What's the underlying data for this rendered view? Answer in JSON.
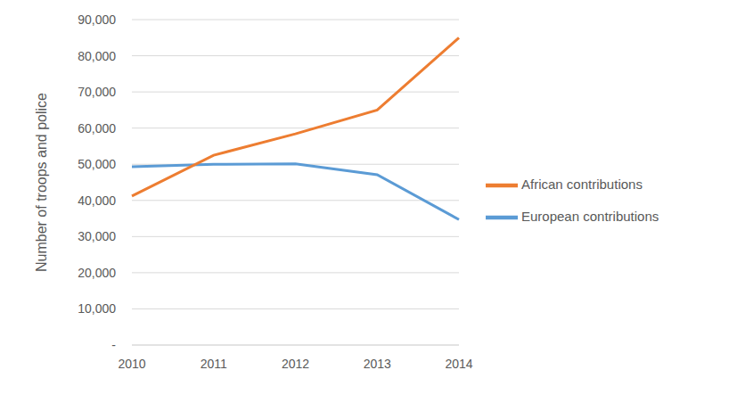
{
  "chart_data": {
    "type": "line",
    "y_label": "Number of troops and police",
    "categories": [
      "2010",
      "2011",
      "2012",
      "2013",
      "2014"
    ],
    "series": [
      {
        "name": "European contributions",
        "color": "#5b9bd5",
        "values": [
          49300,
          50000,
          50100,
          47100,
          34700
        ]
      },
      {
        "name": "African contributions",
        "color": "#ed7d31",
        "values": [
          41200,
          52500,
          58400,
          65000,
          85000
        ]
      }
    ],
    "ylim": [
      0,
      90000
    ],
    "yticks": [
      {
        "value": 0,
        "label": "-"
      },
      {
        "value": 10000,
        "label": "10,000"
      },
      {
        "value": 20000,
        "label": "20,000"
      },
      {
        "value": 30000,
        "label": "30,000"
      },
      {
        "value": 40000,
        "label": "40,000"
      },
      {
        "value": 50000,
        "label": "50,000"
      },
      {
        "value": 60000,
        "label": "60,000"
      },
      {
        "value": 70000,
        "label": "70,000"
      },
      {
        "value": 80000,
        "label": "80,000"
      },
      {
        "value": 90000,
        "label": "90,000"
      }
    ],
    "grid": true,
    "legend": "right"
  }
}
